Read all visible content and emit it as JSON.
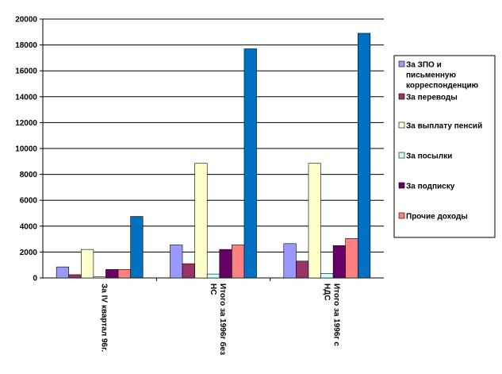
{
  "chart_data": {
    "type": "bar",
    "title": "",
    "xlabel": "",
    "ylabel": "",
    "ylim": [
      0,
      20000
    ],
    "ytick_step": 2000,
    "yticks": [
      "0",
      "2000",
      "4000",
      "6000",
      "8000",
      "10000",
      "12000",
      "14000",
      "16000",
      "18000",
      "20000"
    ],
    "grid": true,
    "legend_position": "right",
    "categories": [
      [
        "За IV квартал 96г."
      ],
      [
        "Итого за 1996г без",
        "НС"
      ],
      [
        "Итого за 1996г с",
        "НДС"
      ]
    ],
    "series": [
      {
        "name": [
          "За ЗПО и",
          "письменную",
          "корреспонденцию"
        ],
        "color": "#9999ff",
        "values": [
          850,
          2550,
          2650
        ]
      },
      {
        "name": [
          "За переводы"
        ],
        "color": "#993366",
        "values": [
          250,
          1100,
          1300
        ]
      },
      {
        "name": [
          "За выплату пенсий"
        ],
        "color": "#ffffcc",
        "values": [
          2200,
          8850,
          8850
        ]
      },
      {
        "name": [
          "За посылки"
        ],
        "color": "#ccffff",
        "values": [
          80,
          300,
          350
        ]
      },
      {
        "name": [
          "За подписку"
        ],
        "color": "#660066",
        "values": [
          650,
          2200,
          2500
        ]
      },
      {
        "name": [
          "Прочие доходы"
        ],
        "color": "#ff8080",
        "values": [
          650,
          2550,
          3050
        ]
      },
      {
        "name": [],
        "color": "#0070c0",
        "values": [
          4750,
          17700,
          18900
        ]
      }
    ]
  }
}
